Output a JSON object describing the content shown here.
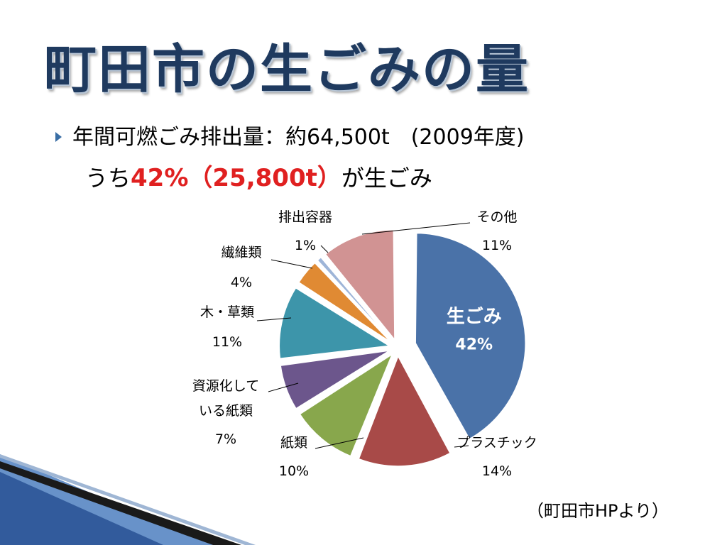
{
  "title": "町田市の生ごみの量",
  "bullet": {
    "line1": "年間可燃ごみ排出量：約64,500t　(2009年度)",
    "line2_prefix": "うち",
    "line2_highlight": "42%（25,800t）",
    "line2_suffix": "が生ごみ"
  },
  "source": "（町田市HPより）",
  "chart_data": {
    "type": "pie",
    "unit": "%",
    "slices": [
      {
        "label": "生ごみ",
        "value": 42,
        "color": "#4a72a8",
        "label_inside": true,
        "exploded": true
      },
      {
        "label": "プラスチック",
        "value": 14,
        "color": "#a84a48",
        "label_inside": false,
        "exploded": false
      },
      {
        "label": "紙類",
        "value": 10,
        "color": "#88a74c",
        "label_inside": false,
        "exploded": false
      },
      {
        "label": "資源化している紙類",
        "value": 7,
        "color": "#6c568c",
        "label_inside": false,
        "exploded": false
      },
      {
        "label": "木・草類",
        "value": 11,
        "color": "#3d95aa",
        "label_inside": false,
        "exploded": false
      },
      {
        "label": "繊維類",
        "value": 4,
        "color": "#e08a33",
        "label_inside": false,
        "exploded": false
      },
      {
        "label": "排出容器",
        "value": 1,
        "color": "#9eb5d8",
        "label_inside": false,
        "exploded": false
      },
      {
        "label": "その他",
        "value": 11,
        "color": "#d19393",
        "label_inside": false,
        "exploded": false
      }
    ]
  }
}
